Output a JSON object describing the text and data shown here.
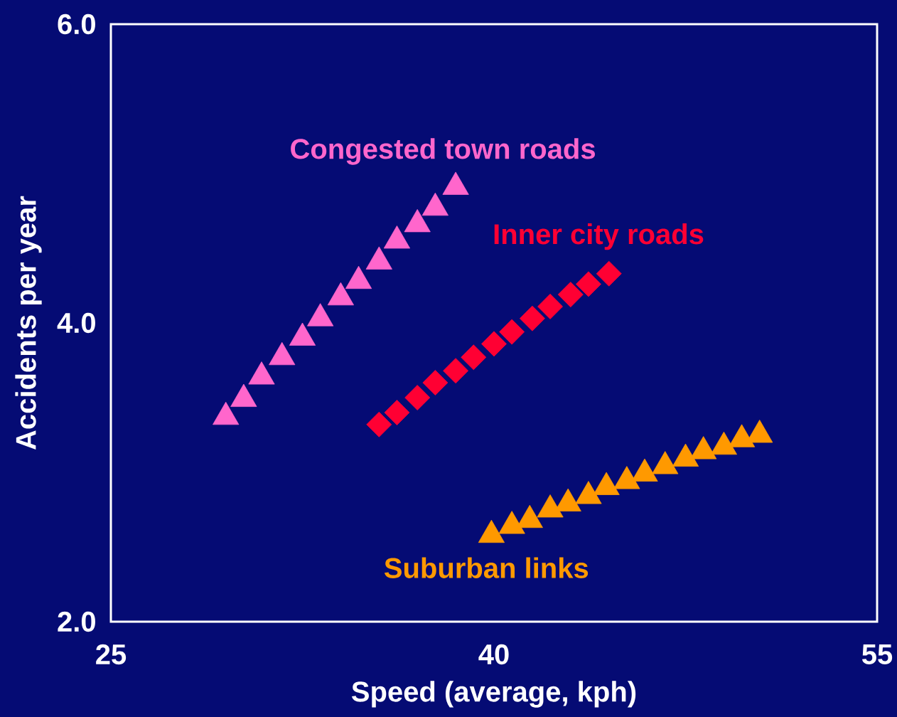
{
  "chart_data": {
    "type": "scatter",
    "xlabel": "Speed (average, kph)",
    "ylabel": "Accidents per year",
    "xlim": [
      25,
      55
    ],
    "ylim": [
      2,
      6
    ],
    "xticks": [
      25,
      40,
      55
    ],
    "yticks": [
      {
        "value": 2,
        "label": "2.0"
      },
      {
        "value": 4,
        "label": "4.0"
      },
      {
        "value": 6,
        "label": "6.0"
      }
    ],
    "series": [
      {
        "name": "Congested town roads",
        "color": "#ff66cc",
        "marker": "triangle",
        "x": [
          29.5,
          30.2,
          30.9,
          31.7,
          32.5,
          33.2,
          34.0,
          34.7,
          35.5,
          36.2,
          37.0,
          37.7,
          38.5
        ],
        "values": [
          3.37,
          3.49,
          3.64,
          3.77,
          3.9,
          4.03,
          4.17,
          4.28,
          4.41,
          4.55,
          4.66,
          4.77,
          4.91
        ]
      },
      {
        "name": "Inner city roads",
        "color": "#ff0033",
        "marker": "diamond",
        "x": [
          35.5,
          36.2,
          37.0,
          37.7,
          38.5,
          39.2,
          40.0,
          40.7,
          41.5,
          42.2,
          43.0,
          43.7,
          44.5
        ],
        "values": [
          3.32,
          3.4,
          3.5,
          3.6,
          3.68,
          3.77,
          3.86,
          3.94,
          4.03,
          4.11,
          4.19,
          4.26,
          4.33
        ]
      },
      {
        "name": "Suburban links",
        "color": "#ff9900",
        "marker": "triangle",
        "x": [
          39.9,
          40.7,
          41.4,
          42.2,
          42.9,
          43.7,
          44.4,
          45.2,
          45.9,
          46.7,
          47.5,
          48.2,
          49.0,
          49.7,
          50.4
        ],
        "values": [
          2.58,
          2.64,
          2.68,
          2.75,
          2.79,
          2.84,
          2.9,
          2.94,
          2.99,
          3.04,
          3.09,
          3.14,
          3.17,
          3.22,
          3.25
        ]
      }
    ]
  }
}
